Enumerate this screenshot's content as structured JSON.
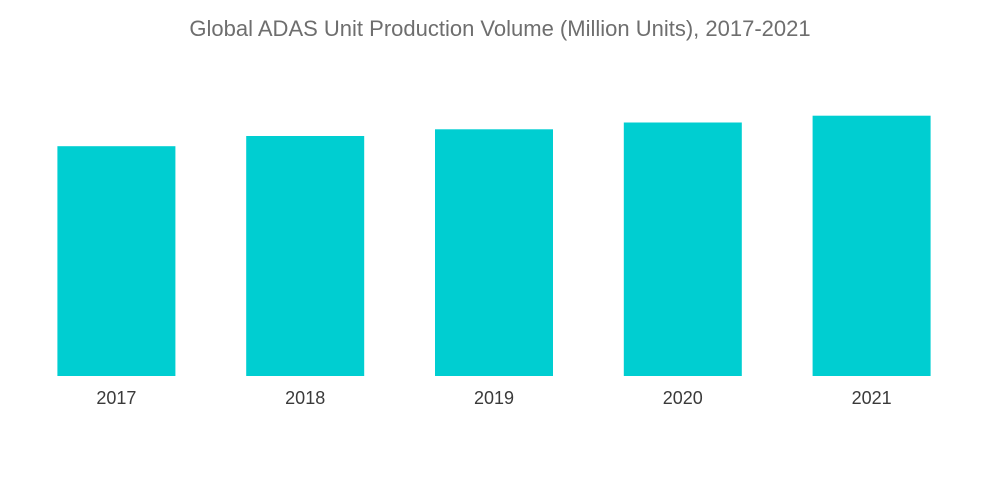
{
  "chart_data": {
    "type": "bar",
    "title": "Global ADAS Unit Production Volume (Million Units), 2017-2021",
    "categories": [
      "2017",
      "2018",
      "2019",
      "2020",
      "2021"
    ],
    "values": [
      68,
      71,
      73,
      75,
      77
    ],
    "xlabel": "",
    "ylabel": "",
    "ylim": [
      0,
      100
    ],
    "grid": false,
    "legend": "none",
    "bar_color": "#00ced1"
  }
}
